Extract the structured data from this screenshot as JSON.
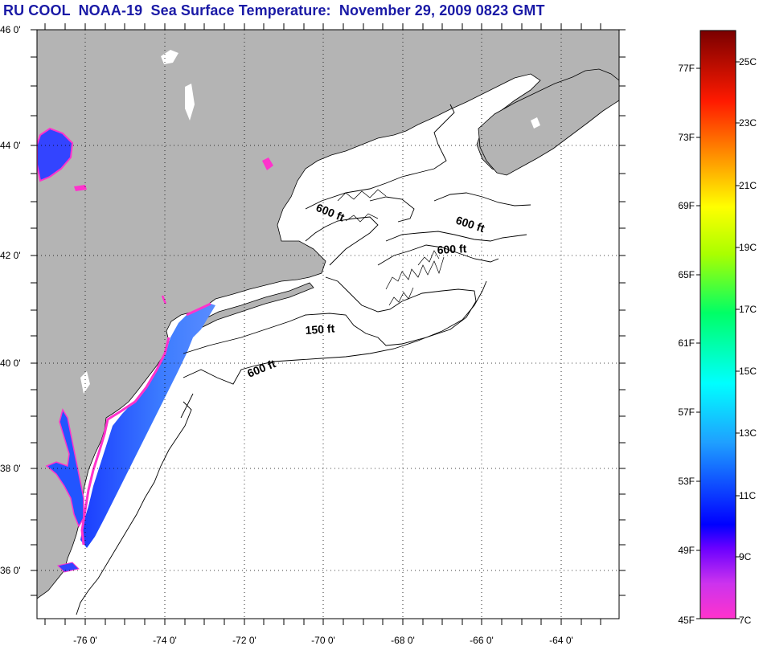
{
  "title": "RU COOL  NOAA-19  Sea Surface Temperature:  November 29, 2009 0823 GMT",
  "lat_labels": [
    "46 0'",
    "44 0'",
    "42 0'",
    "40 0'",
    "38 0'",
    "36 0'"
  ],
  "lon_labels": [
    "-76 0'",
    "-74 0'",
    "-72 0'",
    "-70 0'",
    "-68 0'",
    "-66 0'",
    "-64 0'"
  ],
  "contour_labels": [
    {
      "text": "600 ft",
      "name": "contour-label-600ft-gulf-maine"
    },
    {
      "text": "600 ft",
      "name": "contour-label-600ft-northeast"
    },
    {
      "text": "600 ft",
      "name": "contour-label-600ft-georges"
    },
    {
      "text": "150 ft",
      "name": "contour-label-150ft"
    },
    {
      "text": "600 ft",
      "name": "contour-label-600ft-shelf"
    }
  ],
  "colorbar": {
    "fahrenheit_labels": [
      "77F",
      "73F",
      "69F",
      "65F",
      "61F",
      "57F",
      "53F",
      "49F",
      "45F"
    ],
    "celsius_labels": [
      "25C",
      "23C",
      "21C",
      "19C",
      "17C",
      "15C",
      "13C",
      "11C",
      "9C",
      "7C"
    ]
  },
  "colors": {
    "land": "#b4b4b4",
    "ocean": "#ffffff",
    "title": "#1a1aa6",
    "sst_cold": "#ff33cc",
    "sst_mid": "#2f5bff"
  }
}
